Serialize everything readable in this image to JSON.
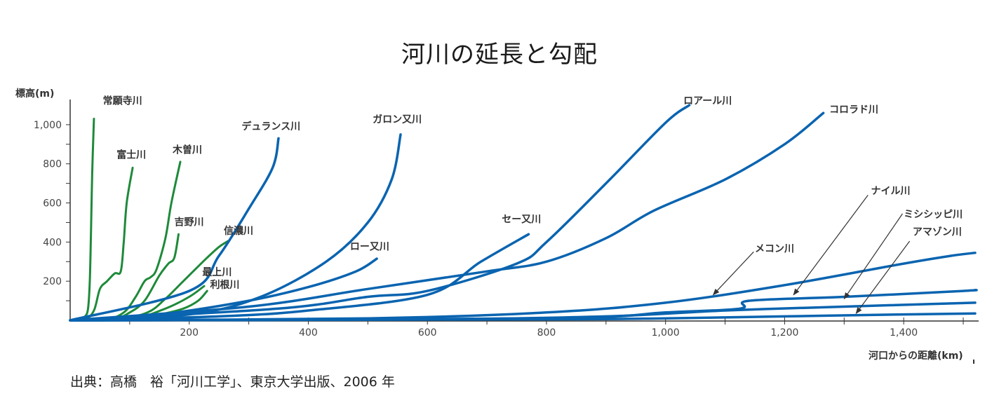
{
  "title": "河川の延長と勾配",
  "source": "出典：高橋　裕「河川工学」、東京大学出版、2006 年",
  "chart_data": {
    "type": "line",
    "title": "河川の延長と勾配",
    "xlabel": "河口からの距離(km)",
    "ylabel": "標高(m)",
    "xlim": [
      0,
      1520
    ],
    "ylim": [
      0,
      1100
    ],
    "x_ticks": [
      200,
      400,
      600,
      800,
      "1,000",
      "1,200",
      "1,400"
    ],
    "y_ticks": [
      "1,000",
      800,
      600,
      400,
      200
    ],
    "x_tick_values": [
      200,
      400,
      600,
      800,
      1000,
      1200,
      1400
    ],
    "y_tick_values": [
      1000,
      800,
      600,
      400,
      200
    ],
    "colors": {
      "japan": "#1e8a3a",
      "foreign": "#0a64b0",
      "axis": "#333333"
    },
    "series": [
      {
        "name": "常願寺川",
        "group": "japan",
        "points": [
          [
            0,
            0
          ],
          [
            15,
            5
          ],
          [
            25,
            20
          ],
          [
            30,
            60
          ],
          [
            33,
            200
          ],
          [
            35,
            450
          ],
          [
            37,
            750
          ],
          [
            40,
            1030
          ]
        ],
        "label_at": [
          55,
          1105
        ]
      },
      {
        "name": "富士川",
        "group": "japan",
        "points": [
          [
            0,
            0
          ],
          [
            25,
            5
          ],
          [
            40,
            50
          ],
          [
            50,
            160
          ],
          [
            62,
            200
          ],
          [
            75,
            240
          ],
          [
            85,
            250
          ],
          [
            90,
            400
          ],
          [
            95,
            600
          ],
          [
            105,
            780
          ]
        ],
        "label_at": [
          78,
          830
        ]
      },
      {
        "name": "木曽川",
        "group": "japan",
        "points": [
          [
            0,
            0
          ],
          [
            60,
            5
          ],
          [
            90,
            40
          ],
          [
            110,
            120
          ],
          [
            125,
            200
          ],
          [
            135,
            220
          ],
          [
            145,
            260
          ],
          [
            160,
            420
          ],
          [
            170,
            600
          ],
          [
            185,
            810
          ]
        ],
        "label_at": [
          172,
          855
        ]
      },
      {
        "name": "吉野川",
        "group": "japan",
        "points": [
          [
            0,
            0
          ],
          [
            70,
            5
          ],
          [
            100,
            40
          ],
          [
            125,
            100
          ],
          [
            150,
            230
          ],
          [
            165,
            290
          ],
          [
            175,
            320
          ],
          [
            182,
            440
          ]
        ],
        "label_at": [
          175,
          485
        ]
      },
      {
        "name": "信濃川",
        "group": "japan",
        "points": [
          [
            0,
            0
          ],
          [
            80,
            5
          ],
          [
            130,
            40
          ],
          [
            160,
            110
          ],
          [
            190,
            200
          ],
          [
            230,
            320
          ],
          [
            250,
            375
          ],
          [
            265,
            405
          ]
        ],
        "label_at": [
          258,
          440
        ]
      },
      {
        "name": "最上川",
        "group": "japan",
        "points": [
          [
            0,
            0
          ],
          [
            100,
            5
          ],
          [
            160,
            60
          ],
          [
            200,
            120
          ],
          [
            225,
            175
          ]
        ],
        "label_at": [
          222,
          230
        ]
      },
      {
        "name": "利根川",
        "group": "japan",
        "points": [
          [
            0,
            0
          ],
          [
            90,
            5
          ],
          [
            150,
            30
          ],
          [
            190,
            60
          ],
          [
            215,
            100
          ],
          [
            230,
            150
          ]
        ],
        "label_at": [
          235,
          165
        ]
      },
      {
        "name": "デュランス川",
        "group": "foreign",
        "points": [
          [
            0,
            0
          ],
          [
            200,
            150
          ],
          [
            250,
            330
          ],
          [
            300,
            570
          ],
          [
            340,
            780
          ],
          [
            350,
            930
          ]
        ],
        "label_at": [
          288,
          975
        ]
      },
      {
        "name": "ガロン又川",
        "group": "foreign",
        "points": [
          [
            0,
            0
          ],
          [
            200,
            30
          ],
          [
            320,
            120
          ],
          [
            430,
            300
          ],
          [
            500,
            500
          ],
          [
            540,
            720
          ],
          [
            555,
            950
          ]
        ],
        "label_at": [
          508,
          1010
        ]
      },
      {
        "name": "ロー又川",
        "group": "foreign",
        "points": [
          [
            0,
            0
          ],
          [
            150,
            30
          ],
          [
            300,
            100
          ],
          [
            400,
            170
          ],
          [
            480,
            250
          ],
          [
            515,
            315
          ]
        ],
        "label_at": [
          470,
          360
        ]
      },
      {
        "name": "セー又川",
        "group": "foreign",
        "points": [
          [
            0,
            0
          ],
          [
            250,
            20
          ],
          [
            400,
            50
          ],
          [
            600,
            130
          ],
          [
            690,
            300
          ],
          [
            770,
            440
          ]
        ],
        "label_at": [
          725,
          500
        ]
      },
      {
        "name": "ロアール川",
        "group": "foreign",
        "points": [
          [
            0,
            0
          ],
          [
            350,
            60
          ],
          [
            500,
            120
          ],
          [
            600,
            150
          ],
          [
            750,
            290
          ],
          [
            800,
            400
          ],
          [
            900,
            700
          ],
          [
            1000,
            1010
          ],
          [
            1040,
            1100
          ]
        ],
        "label_at": [
          1030,
          1105
        ]
      },
      {
        "name": "コロラド川",
        "group": "foreign",
        "points": [
          [
            0,
            0
          ],
          [
            300,
            70
          ],
          [
            500,
            160
          ],
          [
            700,
            250
          ],
          [
            800,
            300
          ],
          [
            900,
            420
          ],
          [
            980,
            560
          ],
          [
            1100,
            720
          ],
          [
            1200,
            900
          ],
          [
            1265,
            1060
          ]
        ],
        "label_at": [
          1275,
          1060
        ]
      },
      {
        "name": "ナイル川",
        "group": "foreign",
        "points": [
          [
            0,
            0
          ],
          [
            800,
            10
          ],
          [
            1000,
            40
          ],
          [
            1125,
            60
          ],
          [
            1140,
            100
          ],
          [
            1300,
            120
          ],
          [
            1500,
            150
          ],
          [
            1520,
            155
          ]
        ],
        "label_at": [
          1345,
          645
        ]
      },
      {
        "name": "ミシシッピ川",
        "group": "foreign",
        "points": [
          [
            0,
            0
          ],
          [
            600,
            5
          ],
          [
            900,
            20
          ],
          [
            1100,
            50
          ],
          [
            1300,
            70
          ],
          [
            1520,
            90
          ]
        ],
        "label_at": [
          1400,
          525
        ]
      },
      {
        "name": "アマゾン川",
        "group": "foreign",
        "points": [
          [
            0,
            0
          ],
          [
            800,
            5
          ],
          [
            1000,
            10
          ],
          [
            1200,
            20
          ],
          [
            1400,
            30
          ],
          [
            1520,
            35
          ]
        ],
        "label_at": [
          1415,
          435
        ]
      },
      {
        "name": "メコン川",
        "group": "foreign",
        "points": [
          [
            0,
            0
          ],
          [
            500,
            10
          ],
          [
            800,
            40
          ],
          [
            1000,
            90
          ],
          [
            1200,
            180
          ],
          [
            1400,
            290
          ],
          [
            1480,
            330
          ],
          [
            1520,
            345
          ]
        ],
        "label_at": [
          1150,
          350
        ]
      }
    ],
    "pointers": [
      {
        "label": "ナイル川",
        "from": [
          1340,
          640
        ],
        "to": [
          1215,
          130
        ]
      },
      {
        "label": "ミシシッピ川",
        "from": [
          1398,
          545
        ],
        "to": [
          1300,
          110
        ]
      },
      {
        "label": "アマゾン川",
        "from": [
          1410,
          405
        ],
        "to": [
          1320,
          35
        ]
      },
      {
        "label": "メコン川",
        "from": [
          1148,
          350
        ],
        "to": [
          1080,
          130
        ]
      }
    ]
  }
}
